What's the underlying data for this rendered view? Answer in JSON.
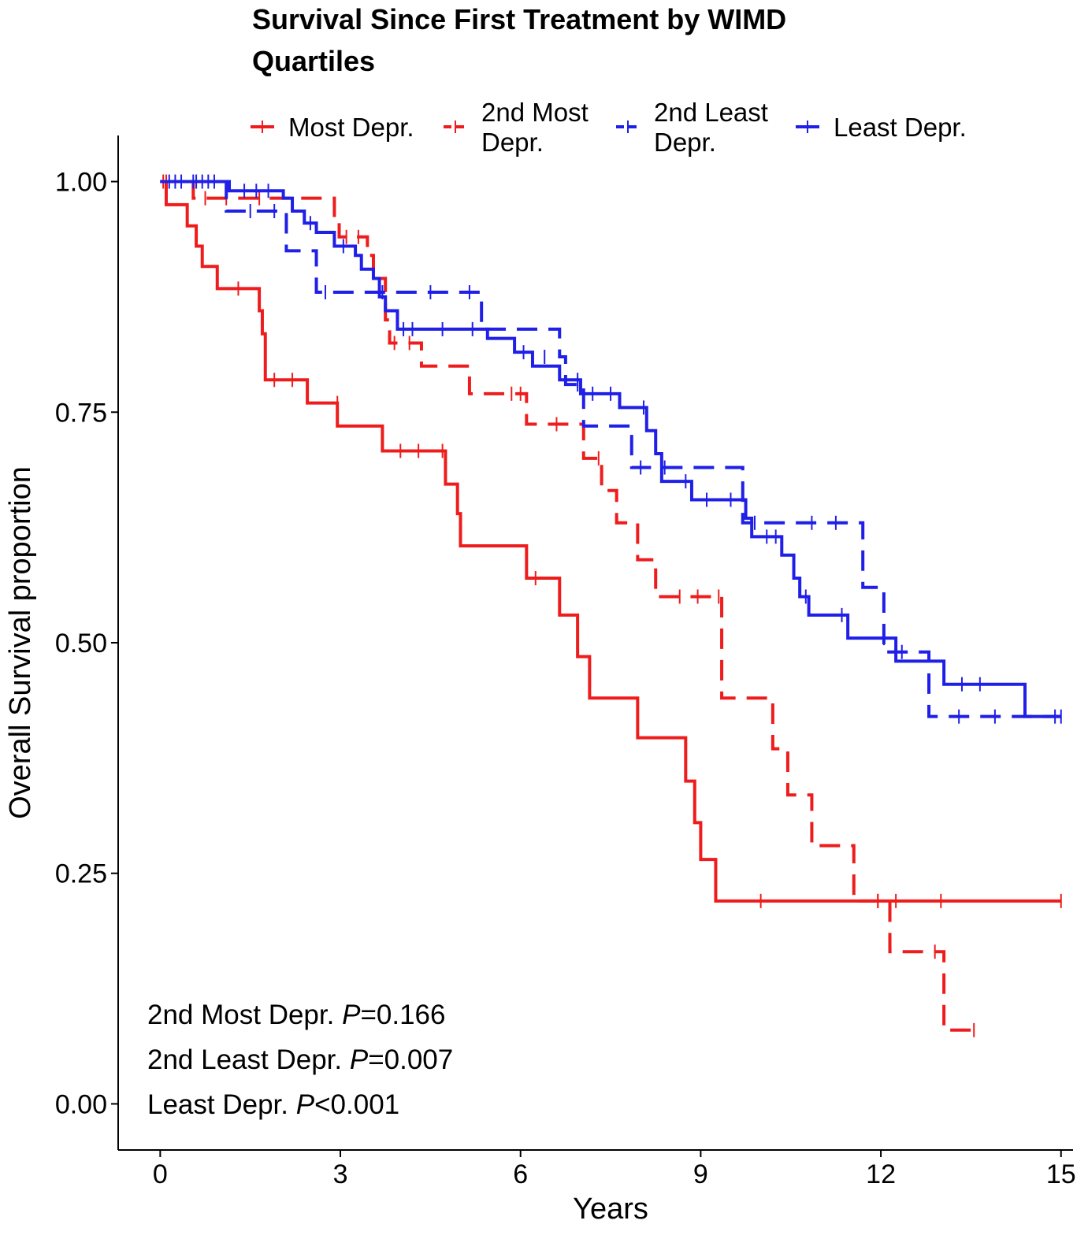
{
  "chart_data": {
    "type": "line",
    "subtype": "kaplan-meier",
    "title": [
      "Survival Since First Treatment by WIMD",
      "Quartiles"
    ],
    "xlabel": "Years",
    "ylabel": "Overall Survival proportion",
    "xlim": [
      -0.7,
      15.2
    ],
    "ylim": [
      -0.05,
      1.05
    ],
    "xticks": [
      0,
      3,
      6,
      9,
      12,
      15
    ],
    "yticks": [
      0,
      0.25,
      0.5,
      0.75,
      1
    ],
    "ytick_labels": [
      "0.00",
      "0.25",
      "0.50",
      "0.75",
      "1.00"
    ],
    "grid": false,
    "legend_position": "top",
    "series": [
      {
        "name": "Most Depr.",
        "legend_lines": [
          "Most Depr."
        ],
        "color": "#ee1c1c",
        "dash": "solid",
        "steps": [
          [
            0,
            1.0
          ],
          [
            0.1,
            0.975
          ],
          [
            0.45,
            0.952
          ],
          [
            0.6,
            0.93
          ],
          [
            0.7,
            0.908
          ],
          [
            0.95,
            0.884
          ],
          [
            1.65,
            0.86
          ],
          [
            1.7,
            0.835
          ],
          [
            1.75,
            0.785
          ],
          [
            2.45,
            0.76
          ],
          [
            2.95,
            0.735
          ],
          [
            3.7,
            0.708
          ],
          [
            4.75,
            0.672
          ],
          [
            4.95,
            0.64
          ],
          [
            5.0,
            0.605
          ],
          [
            6.1,
            0.57
          ],
          [
            6.65,
            0.53
          ],
          [
            6.95,
            0.485
          ],
          [
            7.15,
            0.44
          ],
          [
            7.95,
            0.397
          ],
          [
            8.75,
            0.35
          ],
          [
            8.9,
            0.305
          ],
          [
            9.0,
            0.265
          ],
          [
            9.25,
            0.22
          ]
        ],
        "end": 15.0,
        "censors": [
          [
            0.05,
            1.0
          ],
          [
            1.3,
            0.884
          ],
          [
            1.9,
            0.785
          ],
          [
            2.2,
            0.785
          ],
          [
            2.95,
            0.76
          ],
          [
            4.0,
            0.708
          ],
          [
            4.3,
            0.708
          ],
          [
            4.7,
            0.708
          ],
          [
            6.25,
            0.57
          ],
          [
            10.0,
            0.22
          ],
          [
            11.95,
            0.22
          ],
          [
            12.25,
            0.22
          ],
          [
            13.0,
            0.22
          ],
          [
            15.0,
            0.22
          ]
        ]
      },
      {
        "name": "2nd Most Depr.",
        "legend_lines": [
          "2nd Most",
          "Depr."
        ],
        "color": "#ee1c1c",
        "dash": "26,14",
        "steps": [
          [
            0,
            1.0
          ],
          [
            0.55,
            0.982
          ],
          [
            2.9,
            0.96
          ],
          [
            2.98,
            0.94
          ],
          [
            3.45,
            0.92
          ],
          [
            3.55,
            0.895
          ],
          [
            3.75,
            0.85
          ],
          [
            3.82,
            0.825
          ],
          [
            4.35,
            0.8
          ],
          [
            5.15,
            0.77
          ],
          [
            6.1,
            0.737
          ],
          [
            7.05,
            0.7
          ],
          [
            7.35,
            0.665
          ],
          [
            7.6,
            0.63
          ],
          [
            7.95,
            0.59
          ],
          [
            8.25,
            0.55
          ],
          [
            9.35,
            0.44
          ],
          [
            10.2,
            0.385
          ],
          [
            10.45,
            0.335
          ],
          [
            10.85,
            0.28
          ],
          [
            11.55,
            0.22
          ],
          [
            12.15,
            0.165
          ],
          [
            13.05,
            0.08
          ]
        ],
        "end": 13.6,
        "censors": [
          [
            0.1,
            1.0
          ],
          [
            0.75,
            0.982
          ],
          [
            1.1,
            0.982
          ],
          [
            1.65,
            0.982
          ],
          [
            3.1,
            0.94
          ],
          [
            3.3,
            0.94
          ],
          [
            3.9,
            0.825
          ],
          [
            4.15,
            0.825
          ],
          [
            5.85,
            0.77
          ],
          [
            6.0,
            0.77
          ],
          [
            6.6,
            0.737
          ],
          [
            7.3,
            0.7
          ],
          [
            8.65,
            0.55
          ],
          [
            8.95,
            0.55
          ],
          [
            9.3,
            0.55
          ],
          [
            11.95,
            0.22
          ],
          [
            12.9,
            0.165
          ],
          [
            13.55,
            0.08
          ]
        ]
      },
      {
        "name": "2nd Least Depr.",
        "legend_lines": [
          "2nd Least",
          "Depr."
        ],
        "color": "#1f1fe8",
        "dash": "26,14",
        "steps": [
          [
            0,
            1.0
          ],
          [
            1.1,
            0.968
          ],
          [
            2.1,
            0.925
          ],
          [
            2.6,
            0.88
          ],
          [
            5.35,
            0.84
          ],
          [
            6.65,
            0.81
          ],
          [
            6.75,
            0.78
          ],
          [
            7.05,
            0.735
          ],
          [
            7.85,
            0.69
          ],
          [
            8.0,
            0.69
          ],
          [
            9.7,
            0.63
          ],
          [
            11.7,
            0.56
          ],
          [
            12.05,
            0.49
          ],
          [
            12.8,
            0.42
          ]
        ],
        "end": 15.0,
        "censors": [
          [
            0.25,
            1.0
          ],
          [
            0.6,
            1.0
          ],
          [
            0.8,
            1.0
          ],
          [
            1.5,
            0.968
          ],
          [
            1.9,
            0.968
          ],
          [
            2.75,
            0.88
          ],
          [
            3.7,
            0.88
          ],
          [
            4.5,
            0.88
          ],
          [
            5.15,
            0.88
          ],
          [
            6.4,
            0.81
          ],
          [
            6.95,
            0.78
          ],
          [
            8.0,
            0.69
          ],
          [
            8.4,
            0.69
          ],
          [
            9.9,
            0.63
          ],
          [
            10.85,
            0.63
          ],
          [
            11.25,
            0.63
          ],
          [
            12.35,
            0.49
          ],
          [
            13.3,
            0.42
          ],
          [
            13.9,
            0.42
          ],
          [
            15.0,
            0.42
          ]
        ]
      },
      {
        "name": "Least Depr.",
        "legend_lines": [
          "Least Depr."
        ],
        "color": "#1f1fe8",
        "dash": "solid",
        "steps": [
          [
            0,
            1.0
          ],
          [
            1.15,
            0.99
          ],
          [
            2.05,
            0.982
          ],
          [
            2.2,
            0.968
          ],
          [
            2.4,
            0.955
          ],
          [
            2.6,
            0.945
          ],
          [
            2.9,
            0.93
          ],
          [
            3.25,
            0.92
          ],
          [
            3.35,
            0.905
          ],
          [
            3.55,
            0.895
          ],
          [
            3.65,
            0.875
          ],
          [
            3.75,
            0.86
          ],
          [
            3.95,
            0.84
          ],
          [
            5.45,
            0.83
          ],
          [
            5.9,
            0.815
          ],
          [
            6.2,
            0.8
          ],
          [
            6.65,
            0.785
          ],
          [
            7.0,
            0.77
          ],
          [
            7.65,
            0.755
          ],
          [
            8.1,
            0.73
          ],
          [
            8.25,
            0.705
          ],
          [
            8.35,
            0.675
          ],
          [
            8.85,
            0.655
          ],
          [
            9.75,
            0.635
          ],
          [
            9.85,
            0.615
          ],
          [
            10.35,
            0.595
          ],
          [
            10.55,
            0.57
          ],
          [
            10.65,
            0.55
          ],
          [
            10.8,
            0.53
          ],
          [
            11.45,
            0.505
          ],
          [
            12.25,
            0.48
          ],
          [
            13.05,
            0.455
          ],
          [
            14.4,
            0.42
          ]
        ],
        "end": 15.0,
        "censors": [
          [
            0.15,
            1.0
          ],
          [
            0.35,
            1.0
          ],
          [
            0.55,
            1.0
          ],
          [
            0.7,
            1.0
          ],
          [
            0.9,
            1.0
          ],
          [
            1.4,
            0.99
          ],
          [
            1.6,
            0.99
          ],
          [
            1.8,
            0.99
          ],
          [
            2.5,
            0.955
          ],
          [
            3.05,
            0.93
          ],
          [
            4.05,
            0.84
          ],
          [
            4.2,
            0.84
          ],
          [
            4.7,
            0.84
          ],
          [
            5.2,
            0.84
          ],
          [
            6.05,
            0.815
          ],
          [
            6.95,
            0.785
          ],
          [
            7.2,
            0.77
          ],
          [
            7.5,
            0.77
          ],
          [
            8.05,
            0.755
          ],
          [
            8.75,
            0.675
          ],
          [
            9.1,
            0.655
          ],
          [
            9.5,
            0.655
          ],
          [
            10.1,
            0.615
          ],
          [
            10.25,
            0.615
          ],
          [
            10.75,
            0.55
          ],
          [
            11.35,
            0.53
          ],
          [
            12.05,
            0.505
          ],
          [
            13.35,
            0.455
          ],
          [
            13.65,
            0.455
          ],
          [
            14.9,
            0.42
          ]
        ]
      }
    ],
    "annotations": [
      {
        "prefix": "2nd Most Depr. ",
        "p": "P",
        "suffix": "=0.166"
      },
      {
        "prefix": "2nd Least Depr. ",
        "p": "P",
        "suffix": "=0.007"
      },
      {
        "prefix": "Least Depr. ",
        "p": "P",
        "suffix": "<0.001"
      }
    ]
  }
}
